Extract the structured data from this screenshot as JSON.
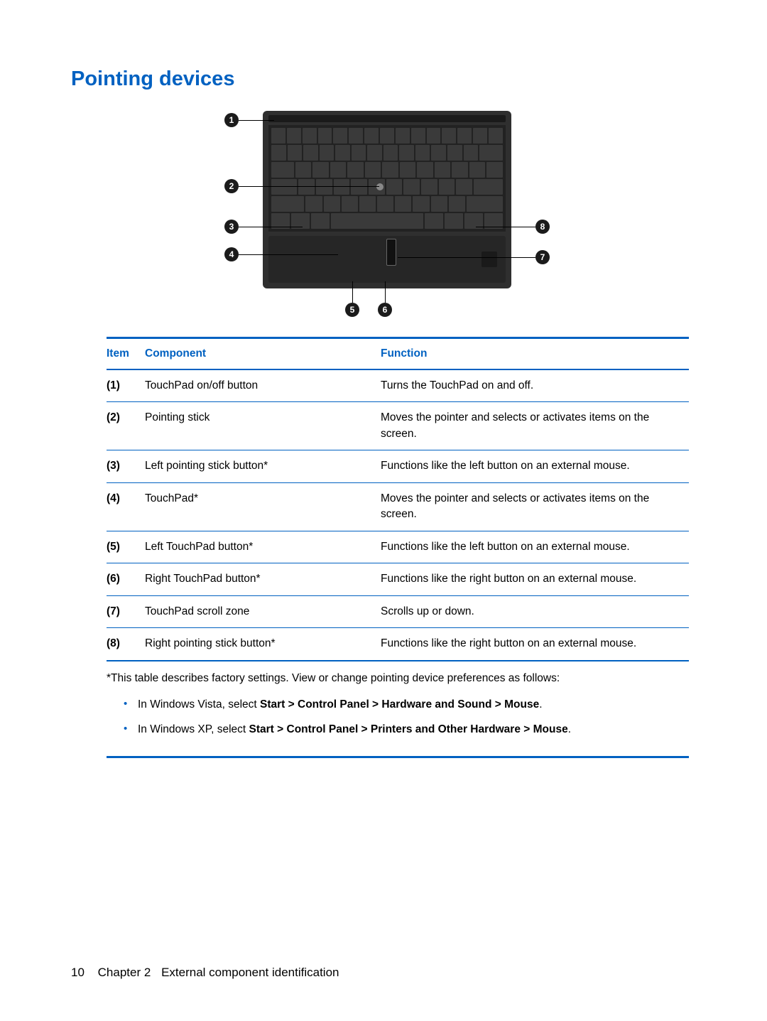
{
  "heading": "Pointing devices",
  "accent_color": "#0061c1",
  "table": {
    "headers": {
      "item": "Item",
      "component": "Component",
      "function": "Function"
    },
    "rows": [
      {
        "item": "(1)",
        "component": "TouchPad on/off button",
        "function": "Turns the TouchPad on and off."
      },
      {
        "item": "(2)",
        "component": "Pointing stick",
        "function": "Moves the pointer and selects or activates items on the screen."
      },
      {
        "item": "(3)",
        "component": "Left pointing stick button*",
        "function": "Functions like the left button on an external mouse."
      },
      {
        "item": "(4)",
        "component": "TouchPad*",
        "function": "Moves the pointer and selects or activates items on the screen."
      },
      {
        "item": "(5)",
        "component": "Left TouchPad button*",
        "function": "Functions like the left button on an external mouse."
      },
      {
        "item": "(6)",
        "component": "Right TouchPad button*",
        "function": "Functions like the right button on an external mouse."
      },
      {
        "item": "(7)",
        "component": "TouchPad scroll zone",
        "function": "Scrolls up or down."
      },
      {
        "item": "(8)",
        "component": "Right pointing stick button*",
        "function": "Functions like the right button on an external mouse."
      }
    ]
  },
  "footnote": {
    "intro": "*This table describes factory settings. View or change pointing device preferences as follows:",
    "items": [
      {
        "prefix": "In Windows Vista, select ",
        "bold": "Start > Control Panel > Hardware and Sound > Mouse",
        "suffix": "."
      },
      {
        "prefix": "In Windows XP, select ",
        "bold": "Start > Control Panel > Printers and Other Hardware > Mouse",
        "suffix": "."
      }
    ]
  },
  "footer": {
    "page_number": "10",
    "chapter_label": "Chapter 2",
    "chapter_title": "External component identification"
  },
  "callouts": {
    "c1": "1",
    "c2": "2",
    "c3": "3",
    "c4": "4",
    "c5": "5",
    "c6": "6",
    "c7": "7",
    "c8": "8"
  }
}
